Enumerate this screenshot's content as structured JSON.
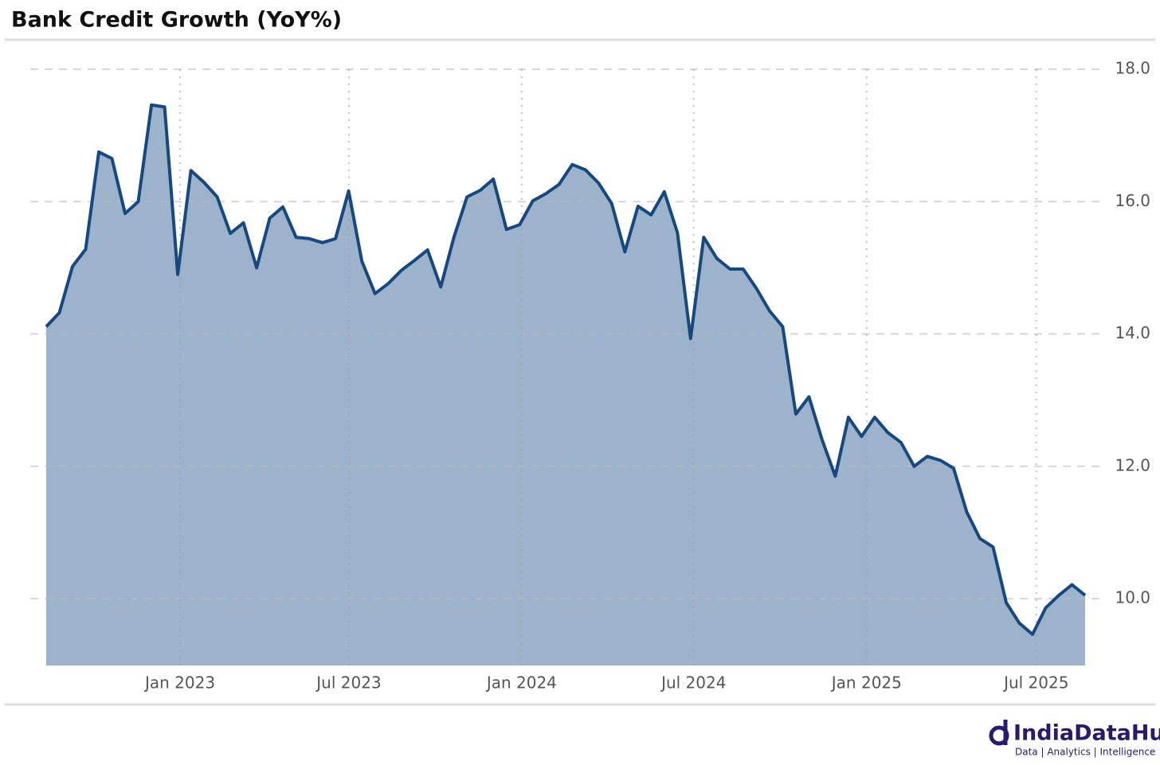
{
  "chart_data": {
    "type": "area",
    "title": "Bank Credit Growth (YoY%)",
    "series": [
      {
        "name": "Bank Credit Growth",
        "color": "#16497f",
        "fill": "#9db3cb",
        "values": [
          14.11,
          14.32,
          15.02,
          15.28,
          16.75,
          16.65,
          15.82,
          16.0,
          17.46,
          17.43,
          14.9,
          16.47,
          16.29,
          16.07,
          15.52,
          15.68,
          15.0,
          15.75,
          15.92,
          15.46,
          15.44,
          15.38,
          15.44,
          16.16,
          15.1,
          14.61,
          14.76,
          14.96,
          15.11,
          15.27,
          14.71,
          15.46,
          16.07,
          16.17,
          16.34,
          15.58,
          15.65,
          16.01,
          16.12,
          16.26,
          16.56,
          16.48,
          16.28,
          15.97,
          15.24,
          15.93,
          15.8,
          16.15,
          15.53,
          13.93,
          15.46,
          15.14,
          14.98,
          14.98,
          14.69,
          14.35,
          14.11,
          12.79,
          13.05,
          12.4,
          11.85,
          12.74,
          12.45,
          12.74,
          12.51,
          12.36,
          12.0,
          12.15,
          12.09,
          11.97,
          11.31,
          10.91,
          10.78,
          9.94,
          9.63,
          9.46,
          9.86,
          10.05,
          10.21,
          10.05
        ]
      }
    ],
    "xlim": [
      0,
      79
    ],
    "xticks": [
      {
        "value": 10.18,
        "label": "Jan 2023"
      },
      {
        "value": 23.02,
        "label": "Jul 2023"
      },
      {
        "value": 36.16,
        "label": "Jan 2024"
      },
      {
        "value": 49.24,
        "label": "Jul 2024"
      },
      {
        "value": 62.39,
        "label": "Jan 2025"
      },
      {
        "value": 75.29,
        "label": "Jul 2025"
      }
    ],
    "ylim": [
      8.99,
      18.3
    ],
    "yticks": [
      {
        "value": 10,
        "label": "10.0"
      },
      {
        "value": 12,
        "label": "12.0"
      },
      {
        "value": 14,
        "label": "14.0"
      },
      {
        "value": 16,
        "label": "16.0"
      },
      {
        "value": 18,
        "label": "18.0"
      }
    ],
    "grid": true
  },
  "logo": {
    "name": "IndiaDataHub",
    "tagline": "Data | Analytics | Intelligence"
  }
}
